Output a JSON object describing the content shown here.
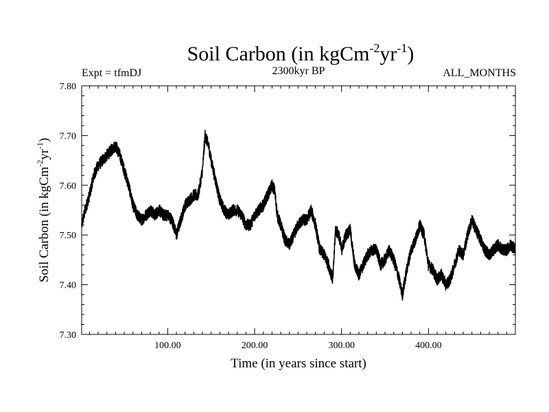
{
  "chart_data": {
    "type": "line",
    "title": "Soil Carbon (in kgCm",
    "title_sup1": "-2",
    "title_mid": "yr",
    "title_sup2": "-1",
    "title_end": ")",
    "expt_label": "Expt = tfmDJ",
    "subtitle": "2300kyr BP",
    "months_label": "ALL_MONTHS",
    "xlabel": "Time (in years since start)",
    "ylabel_main": "Soil Carbon (in kgCm",
    "ylabel_sup1": "-2",
    "ylabel_mid": "yr",
    "ylabel_sup2": "-1",
    "ylabel_end": ")",
    "xlim": [
      1,
      500
    ],
    "ylim": [
      7.3,
      7.8
    ],
    "x_ticks": [
      {
        "value": 100,
        "label": "100.00"
      },
      {
        "value": 200,
        "label": "200.00"
      },
      {
        "value": 300,
        "label": "300.00"
      },
      {
        "value": 400,
        "label": "400.00"
      }
    ],
    "y_ticks": [
      {
        "value": 7.3,
        "label": "7.30"
      },
      {
        "value": 7.4,
        "label": "7.40"
      },
      {
        "value": 7.5,
        "label": "7.50"
      },
      {
        "value": 7.6,
        "label": "7.60"
      },
      {
        "value": 7.7,
        "label": "7.70"
      },
      {
        "value": 7.8,
        "label": "7.80"
      }
    ],
    "line_color": "#000000",
    "noise_amplitude": 0.012,
    "series": [
      {
        "name": "Soil Carbon",
        "x": [
          1,
          5,
          10,
          15,
          20,
          25,
          30,
          35,
          40,
          45,
          50,
          55,
          60,
          65,
          70,
          75,
          80,
          85,
          90,
          95,
          100,
          105,
          110,
          115,
          120,
          125,
          130,
          135,
          140,
          143,
          147,
          150,
          155,
          160,
          165,
          170,
          175,
          180,
          185,
          190,
          195,
          200,
          205,
          210,
          215,
          220,
          223,
          226,
          230,
          235,
          240,
          245,
          250,
          255,
          260,
          265,
          270,
          275,
          280,
          285,
          290,
          293,
          297,
          300,
          305,
          310,
          315,
          320,
          325,
          330,
          335,
          340,
          345,
          350,
          355,
          360,
          365,
          370,
          375,
          380,
          385,
          390,
          395,
          400,
          405,
          410,
          415,
          420,
          425,
          430,
          435,
          440,
          445,
          450,
          455,
          460,
          465,
          470,
          475,
          480,
          485,
          490,
          495,
          500
        ],
        "values": [
          7.52,
          7.55,
          7.58,
          7.62,
          7.64,
          7.65,
          7.66,
          7.67,
          7.68,
          7.66,
          7.63,
          7.6,
          7.56,
          7.54,
          7.53,
          7.54,
          7.55,
          7.54,
          7.55,
          7.54,
          7.54,
          7.53,
          7.5,
          7.53,
          7.56,
          7.57,
          7.58,
          7.58,
          7.63,
          7.7,
          7.68,
          7.65,
          7.61,
          7.57,
          7.55,
          7.54,
          7.55,
          7.55,
          7.54,
          7.52,
          7.52,
          7.54,
          7.55,
          7.56,
          7.58,
          7.6,
          7.59,
          7.54,
          7.52,
          7.49,
          7.48,
          7.5,
          7.52,
          7.53,
          7.53,
          7.55,
          7.52,
          7.47,
          7.46,
          7.44,
          7.41,
          7.51,
          7.5,
          7.47,
          7.5,
          7.51,
          7.44,
          7.42,
          7.44,
          7.46,
          7.47,
          7.47,
          7.44,
          7.45,
          7.47,
          7.45,
          7.42,
          7.38,
          7.43,
          7.47,
          7.49,
          7.52,
          7.5,
          7.44,
          7.43,
          7.41,
          7.42,
          7.4,
          7.41,
          7.44,
          7.47,
          7.46,
          7.5,
          7.53,
          7.51,
          7.49,
          7.47,
          7.46,
          7.47,
          7.48,
          7.47,
          7.47,
          7.48,
          7.47
        ]
      }
    ]
  }
}
